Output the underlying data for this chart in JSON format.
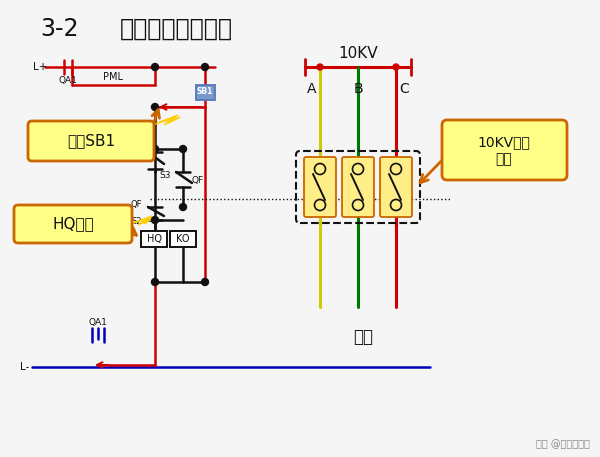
{
  "title1": "3-2",
  "title2": "防止开关跳跃原理",
  "bg_color": "#f5f5f5",
  "red": "#cc0000",
  "blue": "#0000bb",
  "black": "#111111",
  "yellow_line": "#cccc00",
  "green_line": "#007700",
  "orange": "#cc6600",
  "label_bg": "#ffff88",
  "sb1_color": "#5577bb",
  "watermark": "头条 @兴福园电力",
  "phase_A_label": "A",
  "phase_B_label": "B",
  "phase_C_label": "C",
  "10kv_label": "10KV",
  "load_label": "负载",
  "sb1_press": "按下SB1",
  "hq_power": "HQ得电",
  "vac_sw": "10KV真空\n开关",
  "lplus": "L+",
  "lminus": "L-",
  "qa1": "QA1",
  "pml": "PML",
  "ko": "KO",
  "s3": "S3",
  "qf": "QF",
  "s2": "S2",
  "hq": "HQ"
}
